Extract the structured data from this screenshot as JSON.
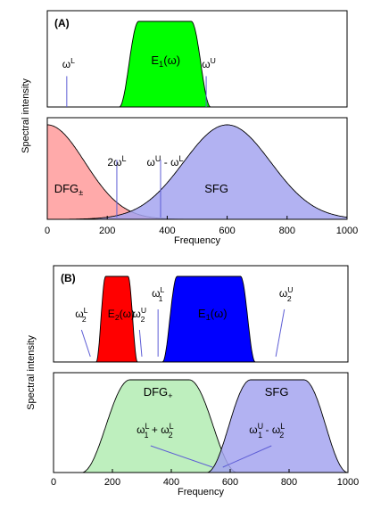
{
  "chart_data": [
    {
      "type": "area",
      "panel_label": "(A)",
      "xlim": [
        0,
        1000
      ],
      "y_axis_label": "Spectral intensity",
      "x_axis_label": "Frequency",
      "x_ticks": [
        "0",
        "200",
        "400",
        "600",
        "800",
        "1000"
      ],
      "top": {
        "series": [
          {
            "name": "E1(ω)",
            "label_main": "E",
            "label_sub": "1",
            "label_rest": "(ω)",
            "color": "#00ff00",
            "shape": "flat-top",
            "start": 240,
            "end": 545,
            "rise": 65,
            "peak": 1.0
          }
        ],
        "markers": [
          {
            "base": "ω",
            "sup": "L",
            "x": 65,
            "height": 0.32
          },
          {
            "base": "ω",
            "sup": "U",
            "x": 530,
            "height": 0.32
          }
        ]
      },
      "bottom": {
        "series": [
          {
            "name": "DFG±",
            "label_main": "DFG",
            "label_sub": "±",
            "label_rest": "",
            "color": "#ff9b9b",
            "shape": "half-gaussian",
            "center": 0,
            "sigma": 125,
            "peak": 1.0
          },
          {
            "name": "SFG",
            "label_main": "SFG",
            "label_sub": "",
            "label_rest": "",
            "color": "#a4a4f0",
            "shape": "gaussian",
            "center": 600,
            "sigma": 145,
            "peak": 1.0
          }
        ],
        "markers": [
          {
            "parts": [
              [
                "ω",
                ""
              ],
              [
                "2",
                ""
              ]
            ],
            "text_a": "2ω",
            "sup_a": "L",
            "x": 232,
            "height": 0.48
          },
          {
            "text_a": "ω",
            "sup_a": "U",
            "mid": " - ω",
            "sup_b": "L",
            "x": 378,
            "height": 0.48
          }
        ]
      }
    },
    {
      "type": "area",
      "panel_label": "(B)",
      "xlim": [
        0,
        1000
      ],
      "y_axis_label": "Spectral intensity",
      "x_axis_label": "Frequency",
      "x_ticks": [
        "0",
        "200",
        "400",
        "600",
        "800",
        "1000"
      ],
      "top": {
        "series": [
          {
            "name": "E2(ω)",
            "label_main": "E",
            "label_sub": "2",
            "label_rest": "(ω)",
            "color": "#ff0000",
            "shape": "flat-top",
            "start": 145,
            "end": 285,
            "rise": 32,
            "peak": 1.0
          },
          {
            "name": "E1(ω)",
            "label_main": "E",
            "label_sub": "1",
            "label_rest": "(ω)",
            "color": "#0000ff",
            "shape": "flat-top",
            "start": 370,
            "end": 685,
            "rise": 50,
            "peak": 1.0
          }
        ],
        "markers": [
          {
            "base": "ω",
            "sup": "L",
            "sub": "2",
            "x_text": 95,
            "x_tip": 125
          },
          {
            "base": "ω",
            "sup": "U",
            "sub": "2",
            "x_text": 292,
            "x_tip": 300
          },
          {
            "base": "ω",
            "sup": "L",
            "sub": "1",
            "x_text": 355,
            "x_tip": 355
          },
          {
            "base": "ω",
            "sup": "U",
            "sub": "2",
            "x_text": 790,
            "x_tip": 755
          }
        ]
      },
      "bottom": {
        "series": [
          {
            "name": "DFG+",
            "label_main": "DFG",
            "label_sub": "+",
            "label_rest": "",
            "color": "#b3ecb3",
            "shape": "flat-top",
            "start": 95,
            "end": 625,
            "rise": 165,
            "peak": 1.0
          },
          {
            "name": "SFG",
            "label_main": "SFG",
            "label_sub": "",
            "label_rest": "",
            "color": "#a4a4f0",
            "shape": "flat-top",
            "start": 520,
            "end": 1000,
            "rise": 150,
            "peak": 1.0
          }
        ],
        "markers": [
          {
            "a": "ω",
            "a_sup": "L",
            "a_sub": "1",
            "op": " + ",
            "b": "ω",
            "b_sup": "L",
            "b_sub": "2"
          },
          {
            "a": "ω",
            "a_sup": "U",
            "a_sub": "1",
            "op": " - ",
            "b": "ω",
            "b_sup": "L",
            "b_sub": "2"
          }
        ]
      }
    }
  ]
}
